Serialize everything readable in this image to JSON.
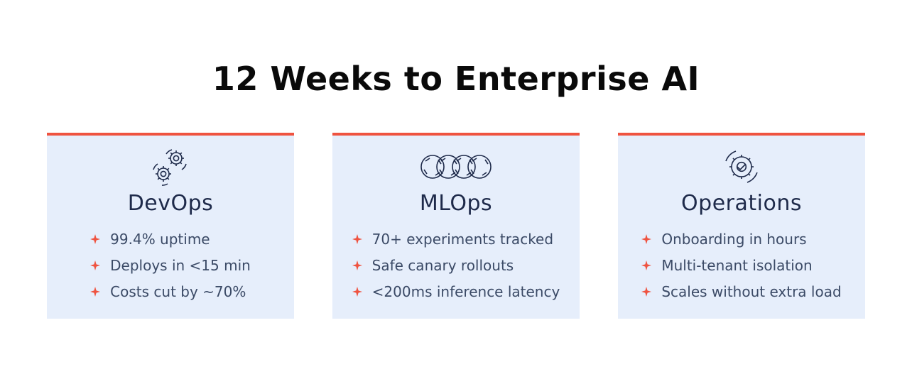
{
  "header": {
    "title": "12 Weeks to Enterprise AI"
  },
  "cards": [
    {
      "title": "DevOps",
      "items": [
        "99.4% uptime",
        "Deploys in <15 min",
        "Costs cut by ~70%"
      ]
    },
    {
      "title": "MLOps",
      "items": [
        "70+ experiments tracked",
        "Safe canary rollouts",
        "<200ms inference latency"
      ]
    },
    {
      "title": "Operations",
      "items": [
        "Onboarding in hours",
        "Multi-tenant isolation",
        "Scales without extra load"
      ]
    }
  ]
}
